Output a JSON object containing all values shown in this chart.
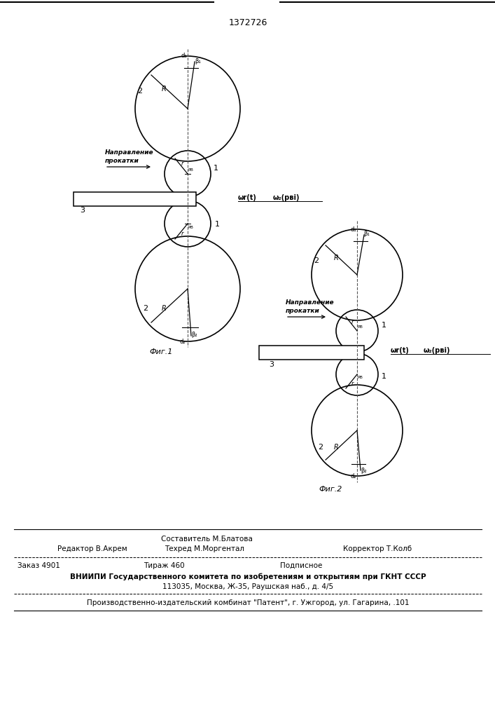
{
  "patent_number": "1372726",
  "bg": "#ffffff",
  "lc": "#000000",
  "fig1_label": "Фиг.1",
  "fig2_label": "Фиг.2",
  "footer": {
    "sestavitel": "Составитель М.Блатова",
    "redaktor": "Редактор В.Акрем",
    "tekhred": "Техред М.Моргентал",
    "korrektor": "Корректор Т.Колб",
    "zakaz": "Заказ 4901",
    "tirazh": "Тираж 460",
    "podpisnoe": "Подписное",
    "vniipи1": "ВНИИПИ Государственного комитета по изобретениям и открытиям при ГКНТ СССР",
    "vniipи2": "113035, Москва, Ж-35, Раушская наб., д. 4/5",
    "prod": "Производственно-издательский комбинат \"Патент\", г. Ужгород, ул. Гагарина, .101"
  }
}
